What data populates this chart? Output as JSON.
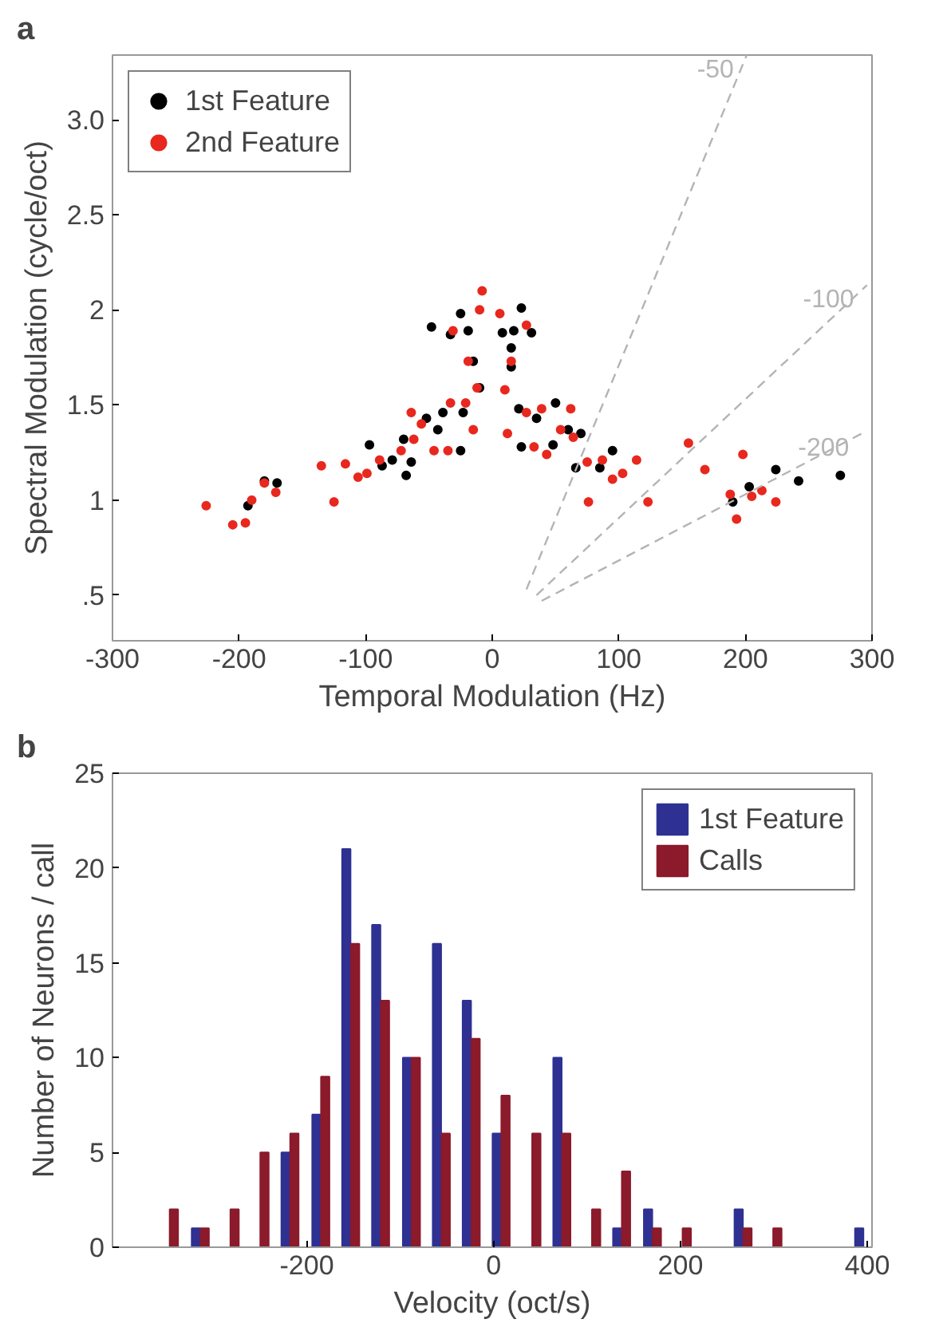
{
  "chart_data": [
    {
      "type": "scatter",
      "title": "a",
      "xlabel": "Temporal Modulation (Hz)",
      "ylabel": "Spectral Modulation (cycle/oct)",
      "xlim": [
        -300,
        300
      ],
      "xticks": [
        -300,
        -200,
        -100,
        0,
        100,
        200,
        300
      ],
      "ylim": [
        0.26,
        3.34
      ],
      "yticks": [
        {
          "value": 0.5,
          "label": ".5"
        },
        1,
        1.5,
        2,
        2.5,
        {
          "value": 3,
          "label": "3.0"
        }
      ],
      "legend": "top left",
      "grid": false,
      "marker": "circle",
      "series": [
        {
          "name": "1st Feature",
          "color": "#000000",
          "x": [
            -193,
            -180,
            -170,
            -97,
            -87,
            -79,
            -68,
            -64,
            -70,
            -52,
            -43,
            -39,
            -25,
            -23,
            -48,
            -33,
            -25,
            -19,
            -15,
            -10,
            8,
            17,
            23,
            31,
            15,
            15,
            21,
            35,
            50,
            23,
            48,
            60,
            66,
            70,
            85,
            95,
            190,
            203,
            224,
            242,
            275
          ],
          "values": [
            0.97,
            1.1,
            1.09,
            1.29,
            1.18,
            1.21,
            1.13,
            1.2,
            1.32,
            1.43,
            1.37,
            1.46,
            1.26,
            1.46,
            1.91,
            1.87,
            1.98,
            1.89,
            1.73,
            1.59,
            1.88,
            1.89,
            2.01,
            1.88,
            1.8,
            1.7,
            1.48,
            1.43,
            1.51,
            1.28,
            1.29,
            1.37,
            1.17,
            1.35,
            1.17,
            1.26,
            0.99,
            1.07,
            1.16,
            1.1,
            1.13
          ]
        },
        {
          "name": "2nd Feature",
          "color": "#e8281e",
          "x": [
            -226,
            -205,
            -195,
            -190,
            -180,
            -171,
            -135,
            -125,
            -116,
            -106,
            -99,
            -89,
            -64,
            -56,
            -62,
            -72,
            -46,
            -35,
            -33,
            -21,
            -15,
            -19,
            -12,
            -8,
            -10,
            6,
            -31,
            27,
            15,
            10,
            12,
            27,
            39,
            33,
            43,
            54,
            62,
            64,
            75,
            87,
            95,
            103,
            114,
            76,
            123,
            155,
            168,
            198,
            188,
            193,
            205,
            213,
            224
          ],
          "values": [
            0.97,
            0.87,
            0.88,
            1.0,
            1.09,
            1.04,
            1.18,
            0.99,
            1.19,
            1.12,
            1.14,
            1.21,
            1.46,
            1.4,
            1.32,
            1.26,
            1.26,
            1.26,
            1.51,
            1.51,
            1.37,
            1.73,
            1.59,
            2.1,
            2.0,
            1.98,
            1.89,
            1.92,
            1.73,
            1.58,
            1.35,
            1.46,
            1.48,
            1.28,
            1.24,
            1.37,
            1.48,
            1.33,
            1.2,
            1.21,
            1.11,
            1.14,
            1.21,
            0.99,
            0.99,
            1.3,
            1.16,
            1.24,
            1.03,
            0.9,
            1.02,
            1.05,
            0.99
          ]
        },
        {
          "type": "line",
          "name": "-50",
          "color": "#b4b4b4",
          "line_style": "dashed",
          "marker": "none",
          "x": [
            27,
            201
          ],
          "values": [
            0.53,
            3.34
          ]
        },
        {
          "type": "line",
          "name": "-100",
          "color": "#b4b4b4",
          "line_style": "dashed",
          "marker": "none",
          "x": [
            35,
            296
          ],
          "values": [
            0.5,
            2.13
          ]
        },
        {
          "type": "line",
          "name": "-200",
          "color": "#b4b4b4",
          "line_style": "dashed",
          "marker": "none",
          "x": [
            39,
            292
          ],
          "values": [
            0.47,
            1.35
          ]
        }
      ]
    },
    {
      "type": "bar",
      "title": "b",
      "xlabel": "Velocity (oct/s)",
      "ylabel": "Number of Neurons / call",
      "xlim": [
        -408,
        405
      ],
      "xticks": [
        -200,
        0,
        200,
        400
      ],
      "ylim": [
        0,
        25
      ],
      "yticks": [
        0,
        5,
        10,
        15,
        20,
        25
      ],
      "legend": "top right",
      "grid": false,
      "x": [
        -347,
        -314,
        -282,
        -250,
        -218,
        -185,
        -153,
        -121,
        -88,
        -56,
        -24,
        8,
        41,
        73,
        105,
        137,
        170,
        202,
        234,
        267,
        299,
        331,
        363,
        396
      ],
      "series": [
        {
          "name": "1st Feature",
          "color": "#2e3192",
          "values": [
            0,
            1,
            0,
            0,
            5,
            7,
            21,
            17,
            10,
            16,
            13,
            6,
            0,
            10,
            0,
            1,
            2,
            0,
            0,
            2,
            0,
            0,
            0,
            1
          ]
        },
        {
          "name": "Calls",
          "color": "#8b1a2b",
          "values": [
            2,
            1,
            2,
            5,
            6,
            9,
            16,
            13,
            10,
            6,
            11,
            8,
            6,
            6,
            2,
            4,
            1,
            1,
            0,
            1,
            1,
            0,
            0,
            0
          ]
        }
      ]
    }
  ]
}
